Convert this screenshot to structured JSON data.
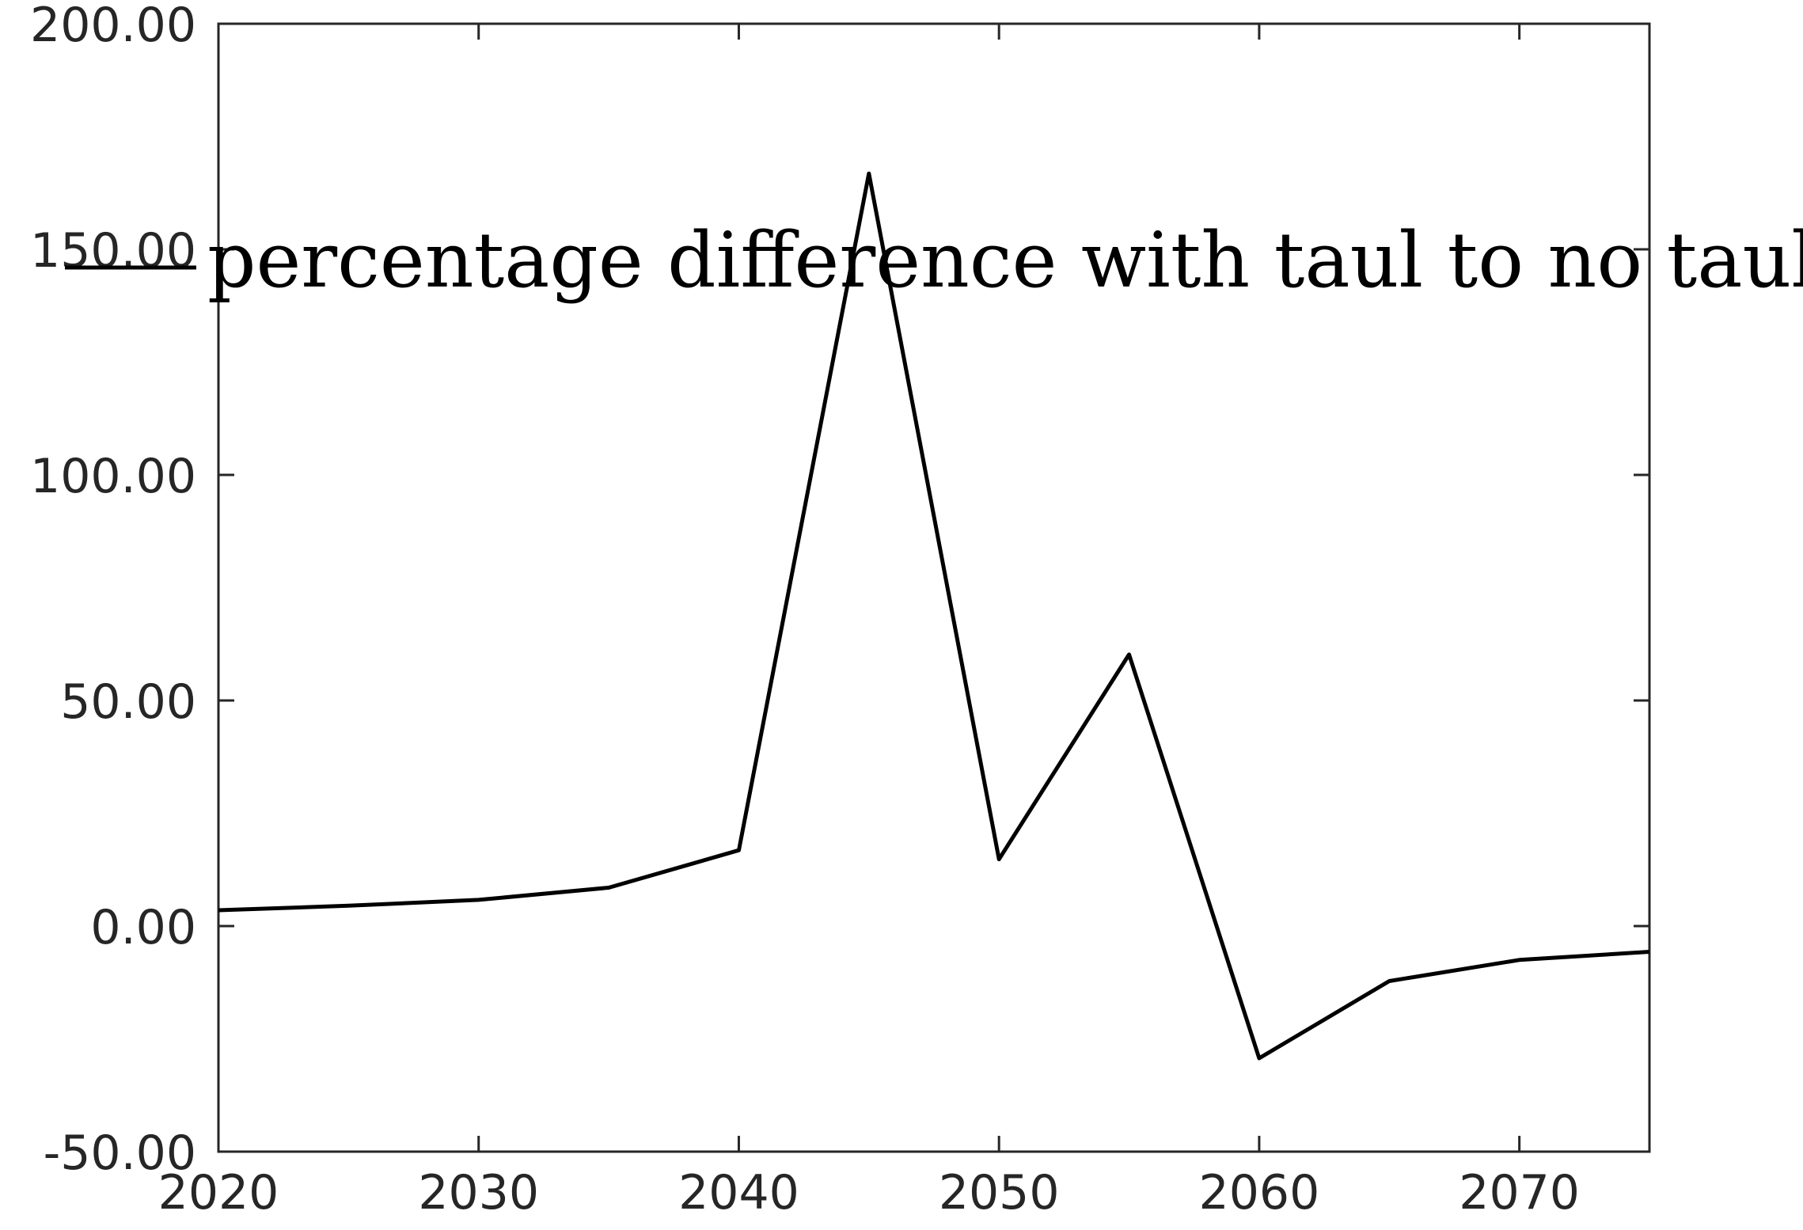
{
  "chart_data": {
    "type": "line",
    "title": "",
    "xlabel": "",
    "ylabel": "",
    "xlim": [
      2020,
      2075
    ],
    "ylim": [
      -50,
      200
    ],
    "x_ticks": [
      {
        "value": 2020,
        "label": "2020"
      },
      {
        "value": 2030,
        "label": "2030"
      },
      {
        "value": 2040,
        "label": "2040"
      },
      {
        "value": 2050,
        "label": "2050"
      },
      {
        "value": 2060,
        "label": "2060"
      },
      {
        "value": 2070,
        "label": "2070"
      }
    ],
    "y_ticks": [
      {
        "value": -50,
        "label": "-50.00"
      },
      {
        "value": 0,
        "label": "0.00"
      },
      {
        "value": 50,
        "label": "50.00"
      },
      {
        "value": 100,
        "label": "100.00"
      },
      {
        "value": 150,
        "label": "150.00"
      },
      {
        "value": 200,
        "label": "200.00"
      }
    ],
    "grid": false,
    "legend_position": "top",
    "series": [
      {
        "name": "percentage difference with taul to no taul",
        "color": "#000000",
        "x": [
          2020,
          2025,
          2030,
          2035,
          2040,
          2045,
          2050,
          2055,
          2060,
          2065,
          2070,
          2075
        ],
        "y": [
          3.5,
          4.5,
          5.8,
          8.5,
          16.8,
          166.8,
          14.8,
          60.2,
          -29.3,
          -12.2,
          -7.5,
          -5.7
        ]
      }
    ]
  }
}
